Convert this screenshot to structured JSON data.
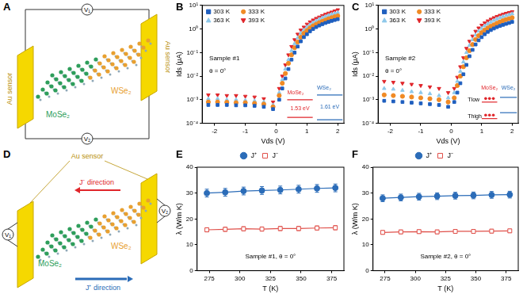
{
  "diagrams": [
    {
      "panel": "A",
      "material_left": "MoSe₂",
      "material_right": "WSe₂",
      "sensor_left": "Au sensor",
      "sensor_right": "Au sensor",
      "meter_top": "V₁",
      "meter_bottom": "V₂"
    },
    {
      "panel": "D",
      "sensor": "Au sensor",
      "arrow_minus": "J⁻ direction",
      "arrow_plus": "J⁺ direction",
      "material_left": "MoSe₂",
      "material_right": "WSe₂",
      "meter_left": "V₁",
      "meter_right": "V₂"
    }
  ],
  "chart_data": [
    {
      "panel": "B",
      "type": "scatter",
      "x_label": "Vds (V)",
      "y_label": "Ids (μA)",
      "log": "y",
      "grid": false,
      "legend": "upper left",
      "xlim": [
        -2.4,
        2.2
      ],
      "xticks": [
        -2,
        -1,
        0,
        1,
        2
      ],
      "ylim": [
        0.0001,
        10
      ],
      "yticks": [
        {
          "value": 0.0001,
          "label": "10⁻⁴"
        },
        {
          "value": 0.001,
          "label": "10⁻³"
        },
        {
          "value": 0.01,
          "label": "10⁻²"
        },
        {
          "value": 0.1,
          "label": "10⁻¹"
        },
        {
          "value": 1,
          "label": "10⁰"
        },
        {
          "value": 10,
          "label": "10¹"
        }
      ],
      "annotations": [
        "Sample #1",
        "θ = 0°",
        "WSe₂",
        "1.61 eV",
        "MoSe₂",
        "1.53 eV"
      ],
      "x": [
        -2.2,
        -1.9,
        -1.6,
        -1.3,
        -1.0,
        -0.7,
        -0.4,
        -0.1,
        0.1,
        0.2,
        0.3,
        0.4,
        0.5,
        0.6,
        0.7,
        0.8,
        0.9,
        1.0,
        1.1,
        1.2,
        1.3,
        1.4,
        1.5,
        1.6,
        1.7,
        1.8,
        1.9,
        2.0
      ],
      "series": [
        {
          "name": "303 K",
          "color": "#1f5fbf",
          "marker": "square",
          "values": [
            0.0006,
            0.0006,
            0.0006,
            0.00058,
            0.00058,
            0.00055,
            0.0005,
            0.0004,
            0.001,
            0.003,
            0.008,
            0.02,
            0.05,
            0.1,
            0.18,
            0.3,
            0.45,
            0.6,
            0.8,
            1.0,
            1.2,
            1.4,
            1.6,
            1.8,
            2.0,
            2.2,
            2.4,
            2.6
          ]
        },
        {
          "name": "333 K",
          "color": "#f08a24",
          "marker": "circle",
          "values": [
            0.0008,
            0.0008,
            0.00078,
            0.00075,
            0.00075,
            0.0007,
            0.00065,
            0.0005,
            0.0015,
            0.005,
            0.013,
            0.035,
            0.08,
            0.16,
            0.28,
            0.45,
            0.65,
            0.85,
            1.1,
            1.35,
            1.6,
            1.85,
            2.1,
            2.4,
            2.7,
            3.0,
            3.3,
            3.6
          ]
        },
        {
          "name": "363 K",
          "color": "#8ec8ea",
          "marker": "triangle",
          "values": [
            0.0011,
            0.0011,
            0.001,
            0.001,
            0.00095,
            0.0009,
            0.0008,
            0.0006,
            0.002,
            0.007,
            0.02,
            0.05,
            0.12,
            0.24,
            0.42,
            0.65,
            0.9,
            1.2,
            1.5,
            1.85,
            2.2,
            2.6,
            3.0,
            3.4,
            3.8,
            4.2,
            4.6,
            5.0
          ]
        },
        {
          "name": "393 K",
          "color": "#e0262b",
          "marker": "triangle-down",
          "values": [
            0.0016,
            0.0016,
            0.0015,
            0.0015,
            0.0014,
            0.0013,
            0.0011,
            0.0008,
            0.003,
            0.01,
            0.03,
            0.08,
            0.18,
            0.35,
            0.6,
            0.9,
            1.2,
            1.6,
            2.0,
            2.4,
            2.8,
            3.2,
            3.7,
            4.2,
            4.7,
            5.2,
            5.8,
            6.5
          ]
        }
      ]
    },
    {
      "panel": "C",
      "type": "scatter",
      "x_label": "Vds (V)",
      "y_label": "Ids (μA)",
      "log": "y",
      "grid": false,
      "legend": "upper left",
      "xlim": [
        -2.4,
        2.2
      ],
      "xticks": [
        -2,
        -1,
        0,
        1,
        2
      ],
      "ylim": [
        0.0001,
        10
      ],
      "yticks": [
        {
          "value": 0.0001,
          "label": "10⁻⁴"
        },
        {
          "value": 0.001,
          "label": "10⁻³"
        },
        {
          "value": 0.01,
          "label": "10⁻²"
        },
        {
          "value": 0.1,
          "label": "10⁻¹"
        },
        {
          "value": 1,
          "label": "10⁰"
        },
        {
          "value": 10,
          "label": "10¹"
        }
      ],
      "annotations": [
        "Sample #2",
        "θ = 0°",
        "WSe₂",
        "MoSe₂",
        "Tlow",
        "Thigh"
      ],
      "x": [
        -2.2,
        -1.9,
        -1.6,
        -1.3,
        -1.0,
        -0.7,
        -0.4,
        -0.1,
        0.1,
        0.2,
        0.3,
        0.4,
        0.5,
        0.6,
        0.7,
        0.8,
        0.9,
        1.0,
        1.1,
        1.2,
        1.3,
        1.4,
        1.5,
        1.6,
        1.7,
        1.8,
        1.9,
        2.0
      ],
      "series": [
        {
          "name": "303 K",
          "color": "#1f5fbf",
          "marker": "square",
          "values": [
            0.0009,
            0.00085,
            0.0008,
            0.00075,
            0.0007,
            0.00065,
            0.0006,
            0.0005,
            0.0008,
            0.002,
            0.005,
            0.012,
            0.03,
            0.07,
            0.13,
            0.22,
            0.33,
            0.45,
            0.6,
            0.75,
            0.9,
            1.05,
            1.2,
            1.35,
            1.5,
            1.65,
            1.8,
            2.0
          ]
        },
        {
          "name": "333 K",
          "color": "#f08a24",
          "marker": "circle",
          "values": [
            0.0016,
            0.0015,
            0.0014,
            0.0013,
            0.0012,
            0.0011,
            0.001,
            0.0008,
            0.0012,
            0.004,
            0.01,
            0.025,
            0.06,
            0.12,
            0.22,
            0.36,
            0.52,
            0.7,
            0.9,
            1.1,
            1.3,
            1.5,
            1.75,
            2.0,
            2.25,
            2.5,
            2.75,
            3.0
          ]
        },
        {
          "name": "363 K",
          "color": "#8ec8ea",
          "marker": "triangle",
          "values": [
            0.003,
            0.0028,
            0.0025,
            0.0022,
            0.002,
            0.0018,
            0.0015,
            0.0012,
            0.002,
            0.006,
            0.016,
            0.04,
            0.1,
            0.2,
            0.35,
            0.55,
            0.8,
            1.05,
            1.35,
            1.65,
            1.95,
            2.3,
            2.65,
            3.0,
            3.35,
            3.7,
            4.05,
            4.4
          ]
        },
        {
          "name": "393 K",
          "color": "#e0262b",
          "marker": "triangle-down",
          "values": [
            0.006,
            0.0055,
            0.005,
            0.0045,
            0.004,
            0.0035,
            0.003,
            0.002,
            0.003,
            0.009,
            0.025,
            0.06,
            0.15,
            0.3,
            0.5,
            0.8,
            1.1,
            1.45,
            1.8,
            2.2,
            2.6,
            3.0,
            3.4,
            3.8,
            4.2,
            4.6,
            5.0,
            5.4
          ]
        }
      ]
    },
    {
      "panel": "E",
      "type": "line",
      "x_label": "T (K)",
      "y_label": "λ (W/m K)",
      "grid": false,
      "legend": "top",
      "xlim": [
        265,
        385
      ],
      "xticks": [
        275,
        300,
        325,
        350,
        375
      ],
      "ylim": [
        0,
        40
      ],
      "yticks": [
        0,
        10,
        20,
        30,
        40
      ],
      "annotations": [
        "Sample #1, θ = 0°"
      ],
      "x": [
        273,
        288,
        303,
        318,
        333,
        348,
        363,
        378
      ],
      "series": [
        {
          "name": "J⁺",
          "color": "#2b6cb8",
          "marker": "circle",
          "values": [
            30.0,
            30.3,
            30.8,
            31.0,
            31.2,
            31.5,
            31.8,
            32.0
          ],
          "errors": [
            1.5,
            1.5,
            1.5,
            1.5,
            1.5,
            1.5,
            1.5,
            1.5
          ]
        },
        {
          "name": "J⁻",
          "color": "#e0504a",
          "marker": "square-open",
          "values": [
            15.8,
            16.0,
            16.2,
            16.1,
            16.3,
            16.3,
            16.5,
            16.6
          ],
          "errors": [
            0.8,
            0.8,
            0.8,
            0.8,
            0.8,
            0.8,
            0.8,
            0.8
          ]
        }
      ]
    },
    {
      "panel": "F",
      "type": "line",
      "x_label": "T (K)",
      "y_label": "λ (W/m K)",
      "grid": false,
      "legend": "top",
      "xlim": [
        265,
        385
      ],
      "xticks": [
        275,
        300,
        325,
        350,
        375
      ],
      "ylim": [
        0,
        40
      ],
      "yticks": [
        0,
        10,
        20,
        30,
        40
      ],
      "annotations": [
        "Sample #2, θ = 0°"
      ],
      "x": [
        273,
        288,
        303,
        318,
        333,
        348,
        363,
        378
      ],
      "series": [
        {
          "name": "J⁺",
          "color": "#2b6cb8",
          "marker": "circle",
          "values": [
            28.0,
            28.3,
            28.6,
            28.8,
            29.0,
            29.1,
            29.3,
            29.4
          ],
          "errors": [
            1.3,
            1.3,
            1.3,
            1.3,
            1.3,
            1.3,
            1.3,
            1.3
          ]
        },
        {
          "name": "J⁻",
          "color": "#e0504a",
          "marker": "square-open",
          "values": [
            14.8,
            15.0,
            15.1,
            15.0,
            15.2,
            15.2,
            15.3,
            15.4
          ],
          "errors": [
            0.7,
            0.7,
            0.7,
            0.7,
            0.7,
            0.7,
            0.7,
            0.7
          ]
        }
      ]
    }
  ]
}
